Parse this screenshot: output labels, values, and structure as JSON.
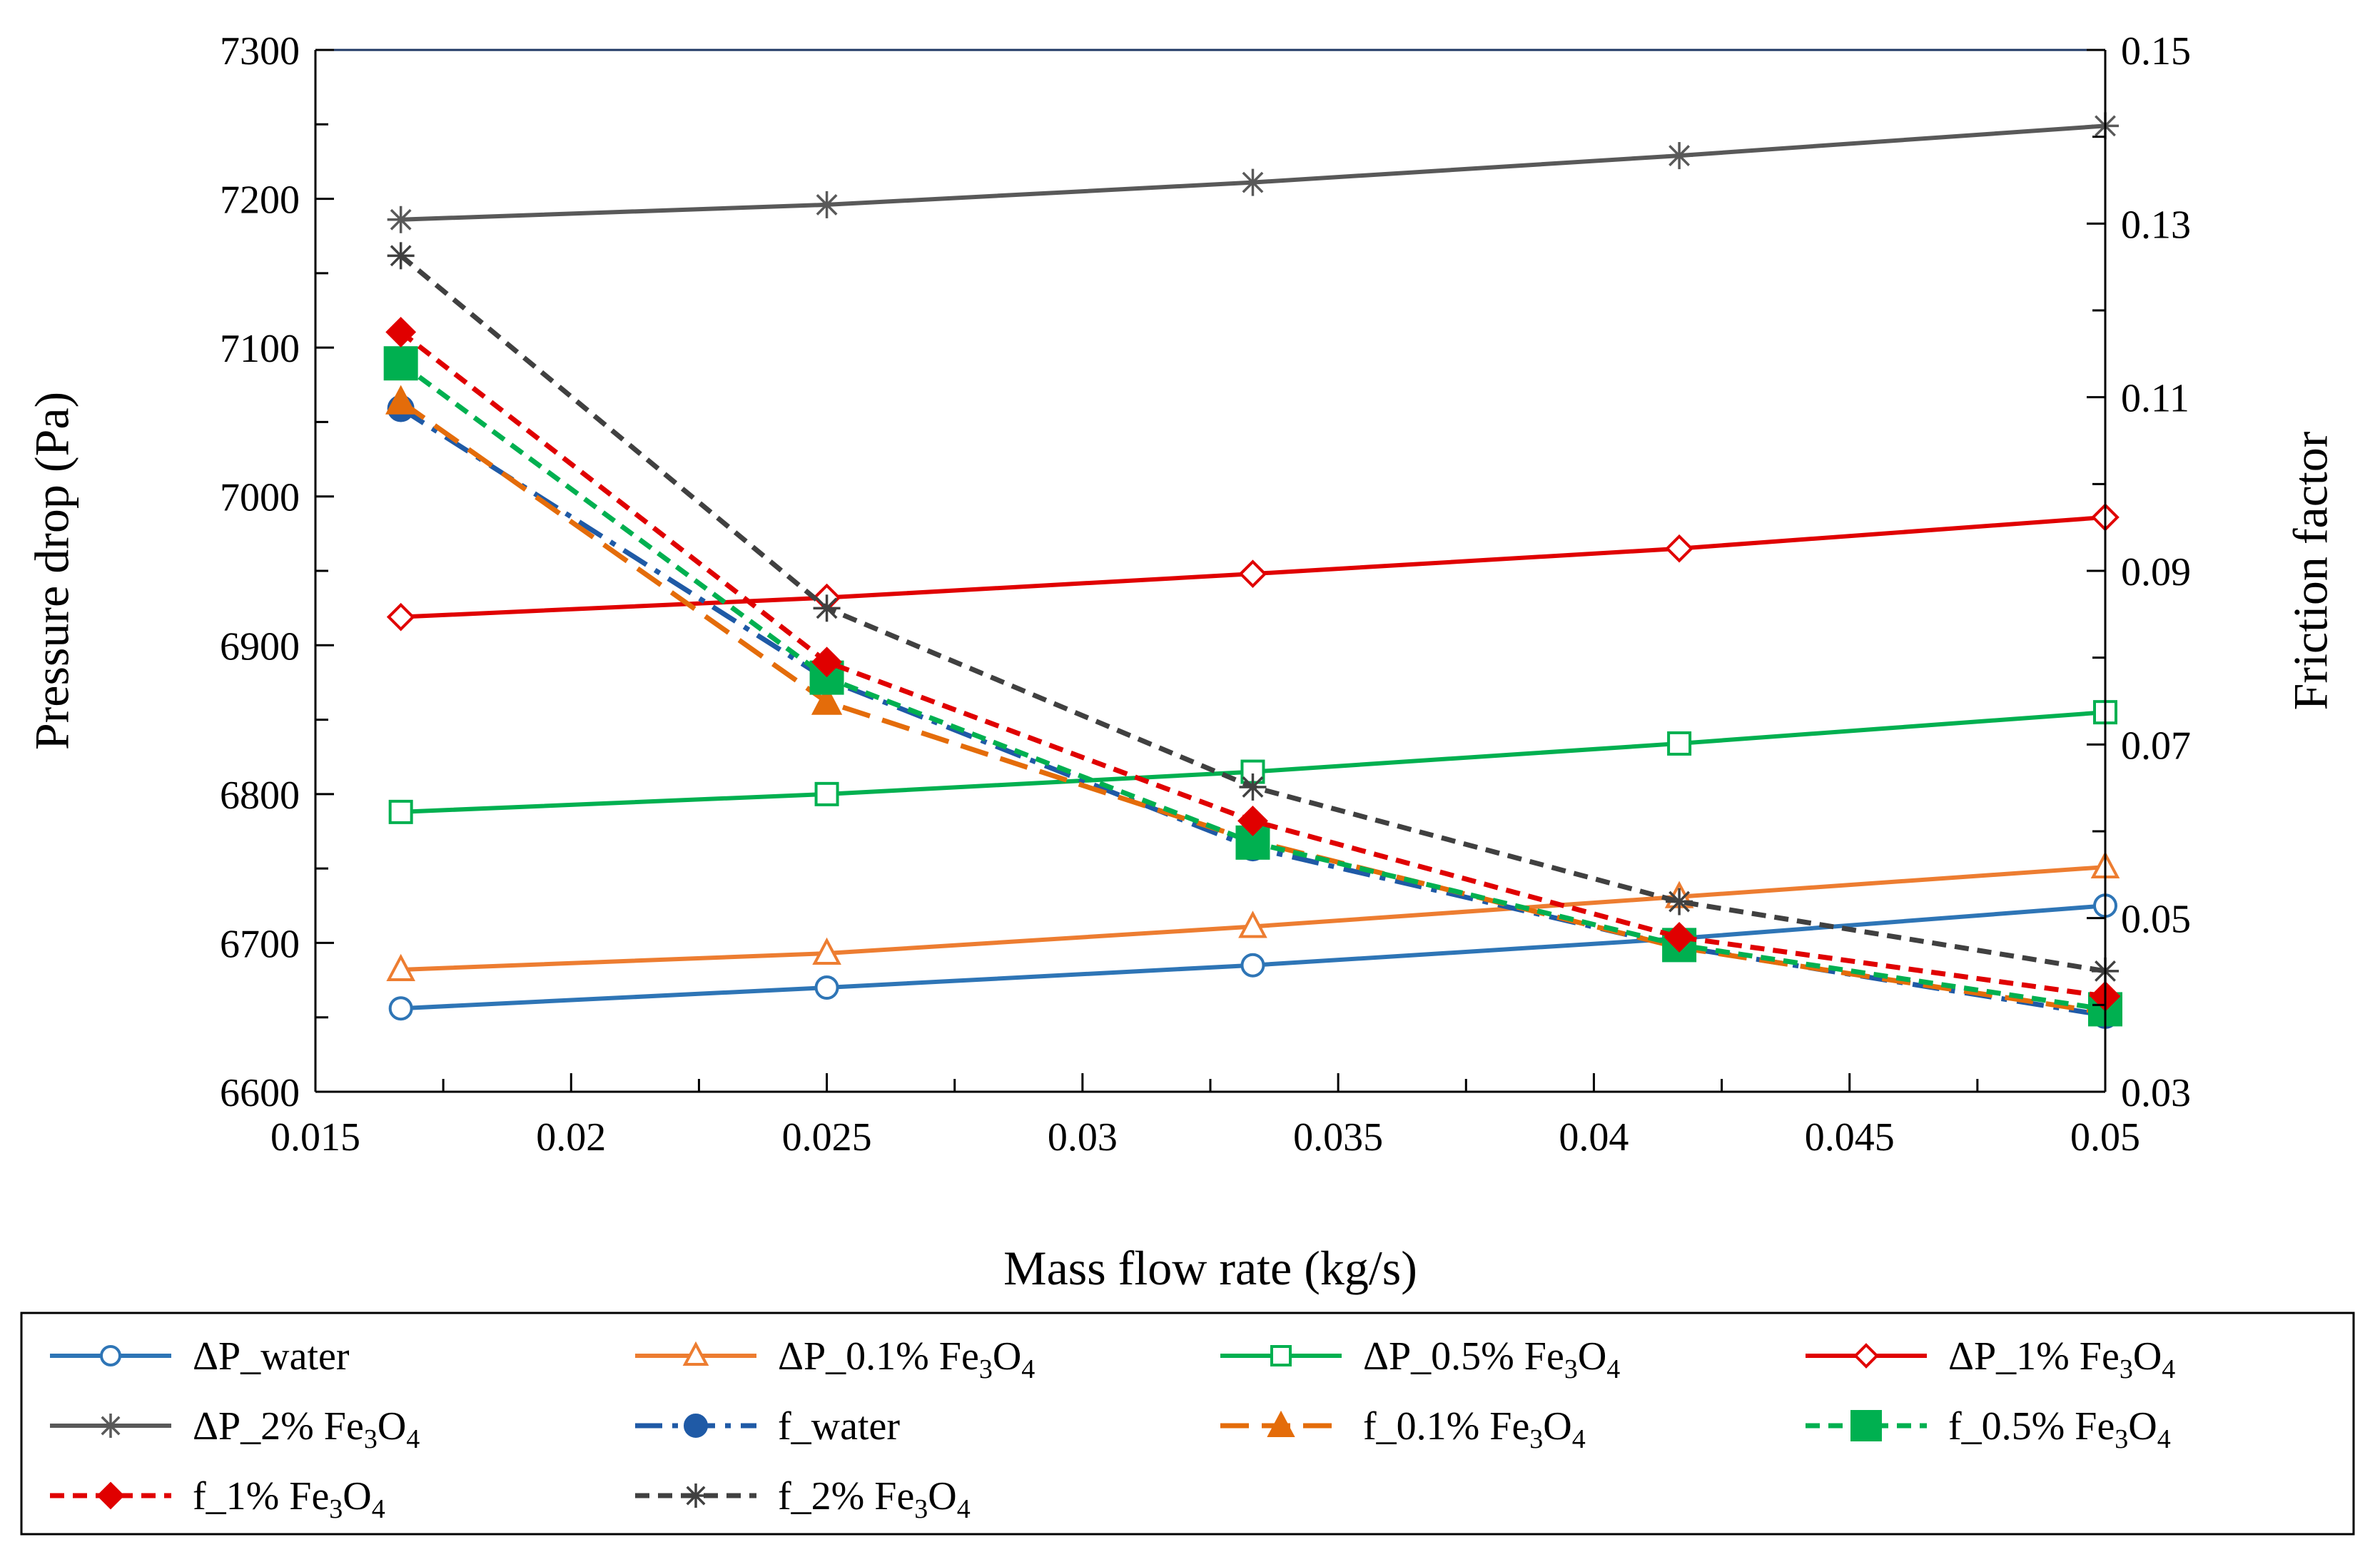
{
  "chart_data": {
    "type": "line",
    "title": "",
    "xlabel": "Mass flow rate (kg/s)",
    "ylabel_left": "Pressure drop (Pa)",
    "ylabel_right": "Friction factor",
    "xlim": [
      0.015,
      0.05
    ],
    "ylim_left": [
      6600,
      7300
    ],
    "ylim_right": [
      0.03,
      0.15
    ],
    "x_ticks": [
      "0.015",
      "0.02",
      "0.025",
      "0.03",
      "0.035",
      "0.04",
      "0.045",
      "0.05"
    ],
    "y_left_ticks": [
      "6600",
      "6700",
      "6800",
      "6900",
      "7000",
      "7100",
      "7200",
      "7300"
    ],
    "y_right_ticks": [
      "0.03",
      "0.05",
      "0.07",
      "0.09",
      "0.11",
      "0.13",
      "0.15"
    ],
    "grid": false,
    "legend_position": "bottom",
    "x": [
      0.01667,
      0.025,
      0.03333,
      0.04167,
      0.05
    ],
    "series": [
      {
        "name": "ΔP_water",
        "name_main": "ΔP_water",
        "sub_formula": false,
        "axis": "left",
        "color": "#2E75B6",
        "marker": "circle-open",
        "dash": "solid",
        "values": [
          6656,
          6670,
          6685,
          6703,
          6725
        ]
      },
      {
        "name": "ΔP_0.1% Fe3O4",
        "name_main": "ΔP_0.1% Fe",
        "sub_formula": true,
        "axis": "left",
        "color": "#ED7D31",
        "marker": "triangle-open",
        "dash": "solid",
        "values": [
          6682,
          6693,
          6711,
          6731,
          6751
        ]
      },
      {
        "name": "ΔP_0.5% Fe3O4",
        "name_main": "ΔP_0.5% Fe",
        "sub_formula": true,
        "axis": "left",
        "color": "#00B050",
        "marker": "square-open",
        "dash": "solid",
        "values": [
          6788,
          6800,
          6815,
          6834,
          6855
        ]
      },
      {
        "name": "ΔP_1% Fe3O4",
        "name_main": "ΔP_1% Fe",
        "sub_formula": true,
        "axis": "left",
        "color": "#E00000",
        "marker": "diamond-open",
        "dash": "solid",
        "values": [
          6919,
          6932,
          6948,
          6965,
          6986
        ]
      },
      {
        "name": "ΔP_2% Fe3O4",
        "name_main": "ΔP_2% Fe",
        "sub_formula": true,
        "axis": "left",
        "color": "#595959",
        "marker": "star",
        "dash": "solid",
        "values": [
          7186,
          7196,
          7211,
          7229,
          7249
        ]
      },
      {
        "name": "f_water",
        "name_main": "f_water",
        "sub_formula": false,
        "axis": "right",
        "color": "#1F5AA6",
        "marker": "circle",
        "dash": "dashdot",
        "values": [
          0.1087,
          0.0775,
          0.0581,
          0.0467,
          0.0388
        ]
      },
      {
        "name": "f_0.1% Fe3O4",
        "name_main": "f_0.1% Fe",
        "sub_formula": true,
        "axis": "right",
        "color": "#E46C0A",
        "marker": "triangle",
        "dash": "longdash",
        "values": [
          0.1095,
          0.0749,
          0.0589,
          0.0466,
          0.0391
        ]
      },
      {
        "name": "f_0.5% Fe3O4",
        "name_main": "f_0.5% Fe",
        "sub_formula": true,
        "axis": "right",
        "color": "#00B050",
        "marker": "square",
        "dash": "shortdash",
        "values": [
          0.1139,
          0.0777,
          0.0587,
          0.0469,
          0.0395
        ]
      },
      {
        "name": "f_1% Fe3O4",
        "name_main": "f_1% Fe",
        "sub_formula": true,
        "axis": "right",
        "color": "#E00000",
        "marker": "diamond",
        "dash": "shortdash",
        "values": [
          0.1175,
          0.0795,
          0.0612,
          0.0478,
          0.041
        ]
      },
      {
        "name": "f_2% Fe3O4",
        "name_main": "f_2% Fe",
        "sub_formula": true,
        "axis": "right",
        "color": "#404040",
        "marker": "star",
        "dash": "shortdash",
        "values": [
          0.1263,
          0.0857,
          0.0651,
          0.0519,
          0.0439
        ]
      }
    ]
  }
}
